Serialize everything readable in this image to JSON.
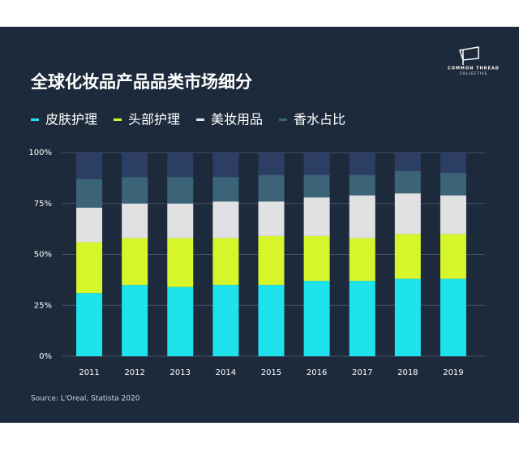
{
  "chart_data": {
    "type": "stacked_bar",
    "title": "全球化妆品产品品类市场细分",
    "logo": {
      "line1": "COMMON THREAD",
      "line2": "COLLECTIVE"
    },
    "source": "Source: L'Oreal, Statista 2020",
    "categories": [
      "2011",
      "2012",
      "2013",
      "2014",
      "2015",
      "2016",
      "2017",
      "2018",
      "2019"
    ],
    "series": [
      {
        "name": "皮肤护理",
        "color": "#1ee3ec",
        "values": [
          31,
          35,
          34,
          35,
          35,
          37,
          37,
          38,
          38
        ]
      },
      {
        "name": "头部护理",
        "color": "#d6f62b",
        "values": [
          25,
          23,
          24,
          23,
          24,
          22,
          21,
          22,
          22
        ]
      },
      {
        "name": "美妆用品",
        "color": "#e1e1e3",
        "values": [
          17,
          17,
          17,
          18,
          17,
          19,
          21,
          20,
          19
        ]
      },
      {
        "name": "香水占比",
        "color": "#3b6478",
        "values": [
          14,
          13,
          13,
          12,
          13,
          11,
          10,
          11,
          11
        ]
      },
      {
        "color": "#2d3e64",
        "values": [
          13,
          12,
          12,
          12,
          11,
          11,
          11,
          9,
          10
        ]
      }
    ],
    "ylim": [
      0,
      100
    ],
    "yticks": [
      {
        "value": 0,
        "label": "0%"
      },
      {
        "value": 25,
        "label": "25%"
      },
      {
        "value": 50,
        "label": "50%"
      },
      {
        "value": 75,
        "label": "75%"
      },
      {
        "value": 100,
        "label": "100%"
      }
    ],
    "grid": true
  }
}
